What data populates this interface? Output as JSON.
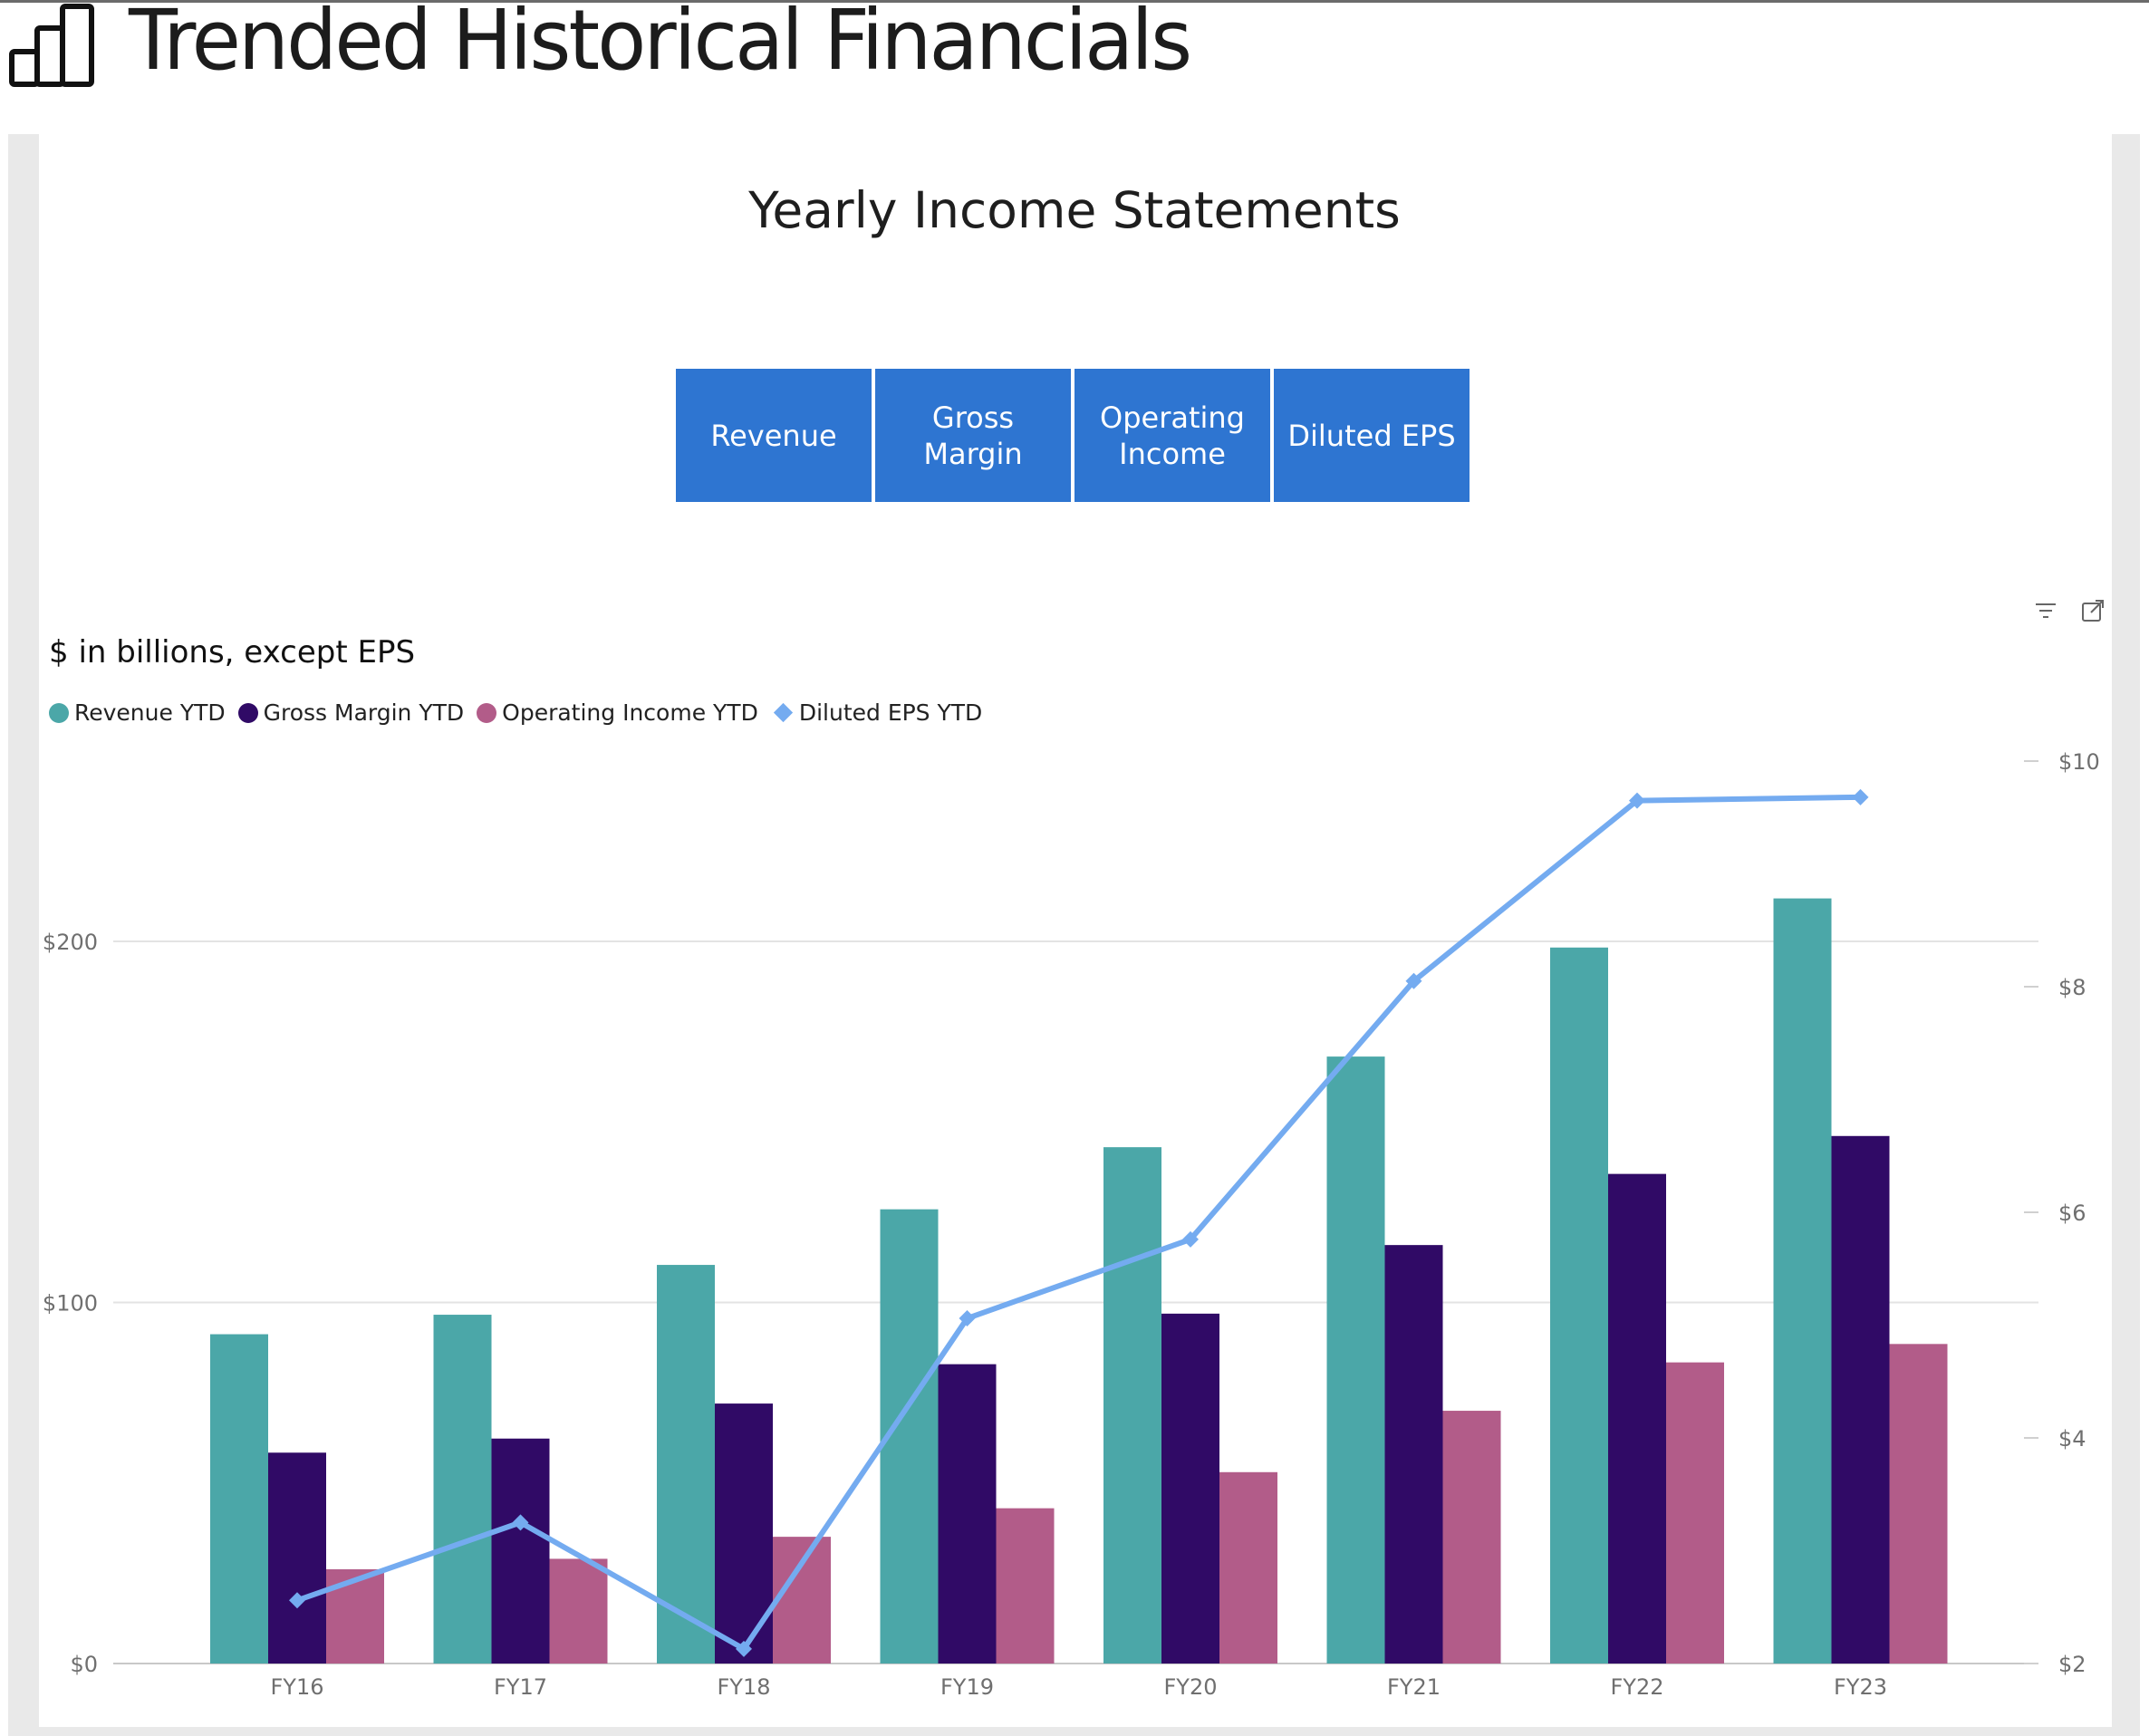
{
  "header": {
    "title": "Trended Historical Financials",
    "icon": "bar-chart-icon"
  },
  "report": {
    "title": "Yearly Income Statements"
  },
  "buttons": [
    {
      "label": "Revenue"
    },
    {
      "label": "Gross Margin"
    },
    {
      "label": "Operating Income"
    },
    {
      "label": "Diluted EPS"
    }
  ],
  "visual_header_icons": [
    "filter-icon",
    "focus-mode-icon"
  ],
  "colors": {
    "button": "#2e75d1",
    "revenue": "#4ba7a8",
    "gross_margin": "#300a66",
    "operating_income": "#b25c89",
    "eps": "#74abf0"
  },
  "chart_data": {
    "type": "bar",
    "subtitle": "$ in billions, except EPS",
    "categories": [
      "FY16",
      "FY17",
      "FY18",
      "FY19",
      "FY20",
      "FY21",
      "FY22",
      "FY23"
    ],
    "series": [
      {
        "name": "Revenue YTD",
        "type": "bar",
        "axis": "left",
        "color": "#4ba7a8",
        "values": [
          91.2,
          96.6,
          110.4,
          125.8,
          143.0,
          168.1,
          198.3,
          211.9
        ]
      },
      {
        "name": "Gross Margin YTD",
        "type": "bar",
        "axis": "left",
        "color": "#300a66",
        "values": [
          58.4,
          62.3,
          72.0,
          82.9,
          96.9,
          115.9,
          135.6,
          146.1
        ]
      },
      {
        "name": "Operating Income YTD",
        "type": "bar",
        "axis": "left",
        "color": "#b25c89",
        "values": [
          26.1,
          29.0,
          35.1,
          43.0,
          53.0,
          70.0,
          83.4,
          88.5
        ]
      },
      {
        "name": "Diluted EPS YTD",
        "type": "line",
        "axis": "right",
        "color": "#74abf0",
        "marker": "diamond",
        "values": [
          2.56,
          3.25,
          2.13,
          5.06,
          5.76,
          8.05,
          9.65,
          9.68
        ]
      }
    ],
    "y_left": {
      "ticks": [
        "$0",
        "$100",
        "$200"
      ],
      "range": [
        0,
        240
      ]
    },
    "y_right": {
      "ticks": [
        "$2",
        "$4",
        "$6",
        "$8",
        "$10"
      ],
      "range": [
        2,
        10.5
      ]
    },
    "legend_position": "top-left",
    "grid": true
  }
}
